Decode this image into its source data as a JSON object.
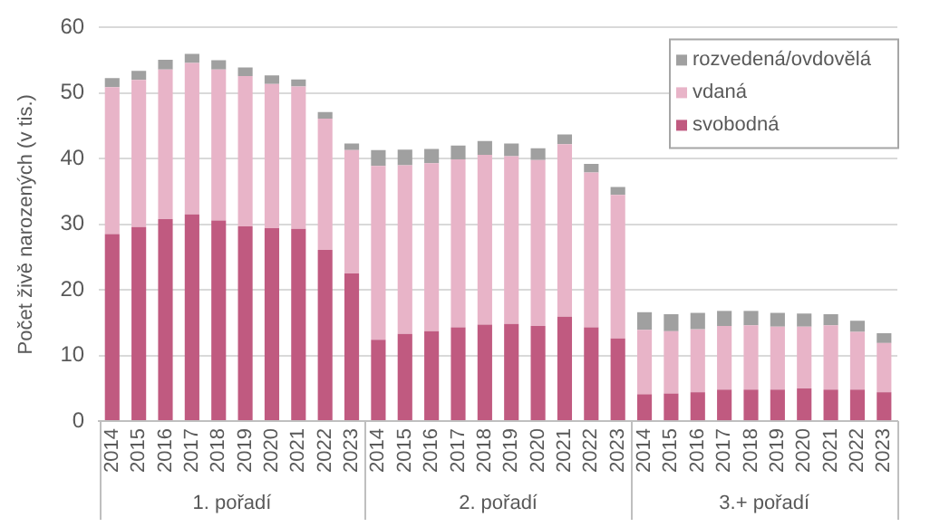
{
  "chart_data": {
    "type": "bar",
    "stacked": true,
    "ylabel": "Počet živě narozených (v tis.)",
    "categories": [
      "2014",
      "2015",
      "2016",
      "2017",
      "2018",
      "2019",
      "2020",
      "2021",
      "2022",
      "2023",
      "2014",
      "2015",
      "2016",
      "2017",
      "2018",
      "2019",
      "2020",
      "2021",
      "2022",
      "2023",
      "2014",
      "2015",
      "2016",
      "2017",
      "2018",
      "2019",
      "2020",
      "2021",
      "2022",
      "2023"
    ],
    "annotations": [
      "1. pořadí",
      "2. pořadí",
      "3.+ pořadí"
    ],
    "series": [
      {
        "name": "svobodná",
        "color": "#c05a80",
        "values": [
          28.5,
          29.6,
          30.8,
          31.5,
          30.6,
          29.7,
          29.4,
          29.3,
          26.1,
          22.5,
          12.4,
          13.3,
          13.7,
          14.3,
          14.7,
          14.8,
          14.5,
          15.9,
          14.3,
          12.6,
          4.1,
          4.2,
          4.4,
          4.8,
          4.8,
          4.8,
          5.0,
          4.8,
          4.8,
          4.4
        ]
      },
      {
        "name": "vdaná",
        "color": "#e8b4c8",
        "values": [
          22.4,
          22.4,
          22.8,
          23.1,
          23.0,
          22.9,
          22.0,
          21.7,
          20.0,
          18.8,
          26.5,
          25.7,
          25.6,
          25.6,
          25.9,
          25.6,
          25.3,
          26.3,
          23.6,
          21.9,
          9.8,
          9.5,
          9.6,
          9.7,
          9.8,
          9.6,
          9.4,
          9.8,
          8.8,
          7.5
        ]
      },
      {
        "name": "rozvedená/ovdovělá",
        "color": "#a0a0a0",
        "values": [
          1.4,
          1.4,
          1.5,
          1.4,
          1.4,
          1.3,
          1.3,
          1.1,
          1.0,
          1.0,
          2.4,
          2.4,
          2.2,
          2.1,
          2.1,
          1.9,
          1.8,
          1.5,
          1.3,
          1.2,
          2.7,
          2.6,
          2.5,
          2.3,
          2.2,
          2.1,
          2.0,
          1.7,
          1.7,
          1.5
        ]
      }
    ],
    "ylim": [
      0,
      60
    ],
    "yticks": [
      0,
      10,
      20,
      30,
      40,
      50,
      60
    ],
    "grid": "y",
    "legend": "top right"
  }
}
